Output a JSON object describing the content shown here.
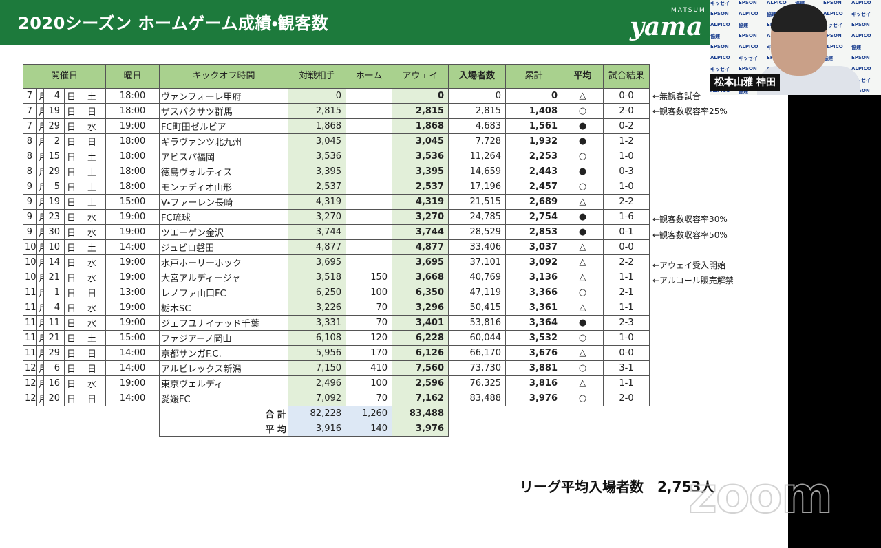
{
  "header": {
    "title": "2020シーズン ホームゲーム成績・観客数",
    "logo_top": "MATSUM",
    "logo": "yama"
  },
  "video": {
    "name": "松本山雅 神田",
    "sponsors": [
      "キッセイ",
      "EPSON",
      "ALPICO",
      "協建",
      "EPSON",
      "ALPICO"
    ]
  },
  "table": {
    "headers": [
      "開催日",
      "曜日",
      "キックオフ時間",
      "対戦相手",
      "ホーム",
      "アウェイ",
      "入場者数",
      "累計",
      "平均",
      "試合結果"
    ],
    "units": [
      "月",
      "日"
    ],
    "rows": [
      {
        "month": "7",
        "day": "4",
        "weekday": "土",
        "time": "18:00",
        "opponent": "ヴァンフォーレ甲府",
        "home": "0",
        "total": "0",
        "cumulative": "0",
        "average": "0",
        "result": "△",
        "score": "0-0",
        "note": "←無観客試合"
      },
      {
        "month": "7",
        "day": "19",
        "weekday": "日",
        "time": "18:00",
        "opponent": "ザスパクサツ群馬",
        "home": "2,815",
        "total": "2,815",
        "cumulative": "2,815",
        "average": "1,408",
        "result": "○",
        "score": "2-0",
        "note": "←観客数収容率25%"
      },
      {
        "month": "7",
        "day": "29",
        "weekday": "水",
        "time": "19:00",
        "opponent": "FC町田ゼルビア",
        "home": "1,868",
        "total": "1,868",
        "cumulative": "4,683",
        "average": "1,561",
        "result": "●",
        "score": "0-2"
      },
      {
        "month": "8",
        "day": "2",
        "weekday": "日",
        "time": "18:00",
        "opponent": "ギラヴァンツ北九州",
        "home": "3,045",
        "total": "3,045",
        "cumulative": "7,728",
        "average": "1,932",
        "result": "●",
        "score": "1-2"
      },
      {
        "month": "8",
        "day": "15",
        "weekday": "土",
        "time": "18:00",
        "opponent": "アビスパ福岡",
        "home": "3,536",
        "total": "3,536",
        "cumulative": "11,264",
        "average": "2,253",
        "result": "○",
        "score": "1-0"
      },
      {
        "month": "8",
        "day": "29",
        "weekday": "土",
        "time": "18:00",
        "opponent": "徳島ヴォルティス",
        "home": "3,395",
        "total": "3,395",
        "cumulative": "14,659",
        "average": "2,443",
        "result": "●",
        "score": "0-3"
      },
      {
        "month": "9",
        "day": "5",
        "weekday": "土",
        "time": "18:00",
        "opponent": "モンテディオ山形",
        "home": "2,537",
        "total": "2,537",
        "cumulative": "17,196",
        "average": "2,457",
        "result": "○",
        "score": "1-0"
      },
      {
        "month": "9",
        "day": "19",
        "weekday": "土",
        "time": "15:00",
        "opponent": "V・ファーレン長崎",
        "home": "4,319",
        "total": "4,319",
        "cumulative": "21,515",
        "average": "2,689",
        "result": "△",
        "score": "2-2"
      },
      {
        "month": "9",
        "day": "23",
        "weekday": "水",
        "time": "19:00",
        "opponent": "FC琉球",
        "home": "3,270",
        "total": "3,270",
        "cumulative": "24,785",
        "average": "2,754",
        "result": "●",
        "score": "1-6",
        "note": "←観客数収容率30%"
      },
      {
        "month": "9",
        "day": "30",
        "weekday": "水",
        "time": "19:00",
        "opponent": "ツエーゲン金沢",
        "home": "3,744",
        "total": "3,744",
        "cumulative": "28,529",
        "average": "2,853",
        "result": "●",
        "score": "0-1",
        "note": "←観客数収容率50%"
      },
      {
        "month": "10",
        "day": "10",
        "weekday": "土",
        "time": "14:00",
        "opponent": "ジュビロ磐田",
        "home": "4,877",
        "total": "4,877",
        "cumulative": "33,406",
        "average": "3,037",
        "result": "△",
        "score": "0-0"
      },
      {
        "month": "10",
        "day": "14",
        "weekday": "水",
        "time": "19:00",
        "opponent": "水戸ホーリーホック",
        "home": "3,695",
        "total": "3,695",
        "cumulative": "37,101",
        "average": "3,092",
        "result": "△",
        "score": "2-2",
        "note": "←アウェイ受入開始"
      },
      {
        "month": "10",
        "day": "21",
        "weekday": "水",
        "time": "19:00",
        "opponent": "大宮アルディージャ",
        "home": "3,518",
        "away": "150",
        "total": "3,668",
        "cumulative": "40,769",
        "average": "3,136",
        "result": "△",
        "score": "1-1",
        "note": "←アルコール販売解禁"
      },
      {
        "month": "11",
        "day": "1",
        "weekday": "日",
        "time": "13:00",
        "opponent": "レノファ山口FC",
        "home": "6,250",
        "away": "100",
        "total": "6,350",
        "cumulative": "47,119",
        "average": "3,366",
        "result": "○",
        "score": "2-1"
      },
      {
        "month": "11",
        "day": "4",
        "weekday": "水",
        "time": "19:00",
        "opponent": "栃木SC",
        "home": "3,226",
        "away": "70",
        "total": "3,296",
        "cumulative": "50,415",
        "average": "3,361",
        "result": "△",
        "score": "1-1"
      },
      {
        "month": "11",
        "day": "11",
        "weekday": "水",
        "time": "19:00",
        "opponent": "ジェフユナイテッド千葉",
        "home": "3,331",
        "away": "70",
        "total": "3,401",
        "cumulative": "53,816",
        "average": "3,364",
        "result": "●",
        "score": "2-3"
      },
      {
        "month": "11",
        "day": "21",
        "weekday": "土",
        "time": "15:00",
        "opponent": "ファジアーノ岡山",
        "home": "6,108",
        "away": "120",
        "total": "6,228",
        "cumulative": "60,044",
        "average": "3,532",
        "result": "○",
        "score": "1-0"
      },
      {
        "month": "11",
        "day": "29",
        "weekday": "日",
        "time": "14:00",
        "opponent": "京都サンガF.C.",
        "home": "5,956",
        "away": "170",
        "total": "6,126",
        "cumulative": "66,170",
        "average": "3,676",
        "result": "△",
        "score": "0-0"
      },
      {
        "month": "12",
        "day": "6",
        "weekday": "日",
        "time": "14:00",
        "opponent": "アルビレックス新潟",
        "home": "7,150",
        "away": "410",
        "total": "7,560",
        "cumulative": "73,730",
        "average": "3,881",
        "result": "○",
        "score": "3-1"
      },
      {
        "month": "12",
        "day": "16",
        "weekday": "水",
        "time": "19:00",
        "opponent": "東京ヴェルディ",
        "home": "2,496",
        "away": "100",
        "total": "2,596",
        "cumulative": "76,325",
        "average": "3,816",
        "result": "△",
        "score": "1-1"
      },
      {
        "month": "12",
        "day": "20",
        "weekday": "日",
        "time": "14:00",
        "opponent": "愛媛FC",
        "home": "7,092",
        "away": "70",
        "total": "7,162",
        "cumulative": "83,488",
        "average": "3,976",
        "result": "○",
        "score": "2-0"
      }
    ],
    "summary": [
      {
        "label": "合 計",
        "home": "82,228",
        "away": "1,260",
        "total": "83,488"
      },
      {
        "label": "平 均",
        "home": "3,916",
        "away": "140",
        "total": "3,976"
      }
    ]
  },
  "league_average": "リーグ平均入場者数　2,753人",
  "watermark": "zoom"
}
